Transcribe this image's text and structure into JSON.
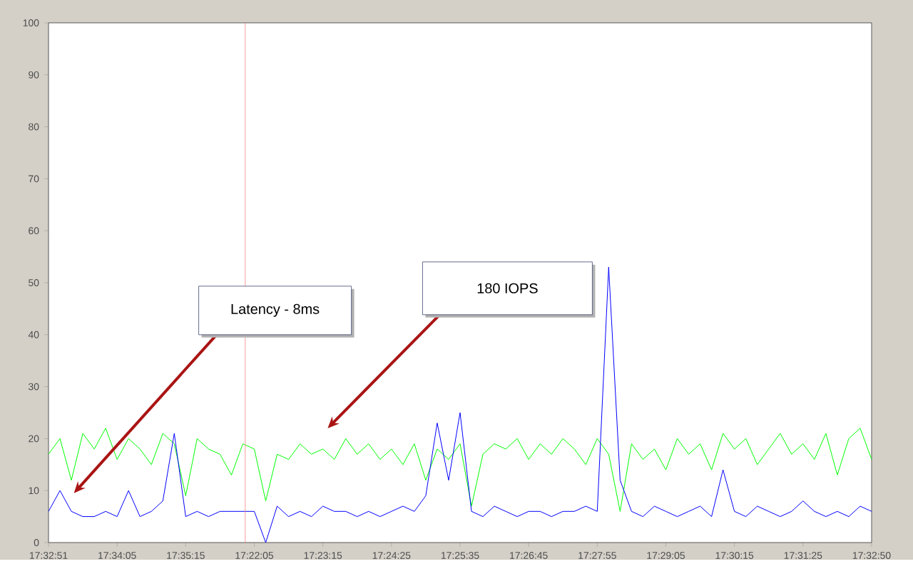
{
  "chart_data": {
    "type": "line",
    "categories": [
      "17:32:51",
      null,
      null,
      null,
      null,
      null,
      "17:34:05",
      null,
      null,
      null,
      null,
      null,
      "17:35:15",
      null,
      null,
      null,
      null,
      null,
      "17:22:05",
      null,
      null,
      null,
      null,
      null,
      "17:23:15",
      null,
      null,
      null,
      null,
      null,
      "17:24:25",
      null,
      null,
      null,
      null,
      null,
      "17:25:35",
      null,
      null,
      null,
      null,
      null,
      "17:26:45",
      null,
      null,
      null,
      null,
      null,
      "17:27:55",
      null,
      null,
      null,
      null,
      null,
      "17:29:05",
      null,
      null,
      null,
      null,
      null,
      "17:30:15",
      null,
      null,
      null,
      null,
      null,
      "17:31:25",
      null,
      null,
      null,
      null,
      null,
      "17:32:50"
    ],
    "series": [
      {
        "color": "#00ff00",
        "values": [
          17,
          20,
          12,
          21,
          18,
          22,
          16,
          20,
          18,
          15,
          21,
          19,
          9,
          20,
          18,
          17,
          13,
          19,
          18,
          8,
          17,
          16,
          19,
          17,
          18,
          16,
          20,
          17,
          19,
          16,
          18,
          15,
          19,
          12,
          18,
          16,
          19,
          7,
          17,
          19,
          18,
          20,
          16,
          19,
          17,
          20,
          18,
          15,
          20,
          17,
          6,
          19,
          16,
          18,
          14,
          20,
          17,
          19,
          14,
          21,
          18,
          20,
          15,
          18,
          21,
          17,
          19,
          16,
          21,
          13,
          20,
          22,
          16
        ]
      },
      {
        "color": "#0000ff",
        "values": [
          6,
          10,
          6,
          5,
          5,
          6,
          5,
          10,
          5,
          6,
          8,
          21,
          5,
          6,
          5,
          6,
          6,
          6,
          6,
          0,
          7,
          5,
          6,
          5,
          7,
          6,
          6,
          5,
          6,
          5,
          6,
          7,
          6,
          9,
          23,
          12,
          25,
          6,
          5,
          7,
          6,
          5,
          6,
          6,
          5,
          6,
          6,
          7,
          6,
          53,
          12,
          6,
          5,
          7,
          6,
          5,
          6,
          7,
          5,
          14,
          6,
          5,
          7,
          6,
          5,
          6,
          8,
          6,
          5,
          6,
          5,
          7,
          6
        ]
      }
    ],
    "ylim": [
      0,
      100
    ],
    "yticks": [
      0,
      10,
      20,
      30,
      40,
      50,
      60,
      70,
      80,
      90,
      100
    ],
    "annotations": [
      "Latency - 8ms",
      "180 IOPS"
    ]
  }
}
